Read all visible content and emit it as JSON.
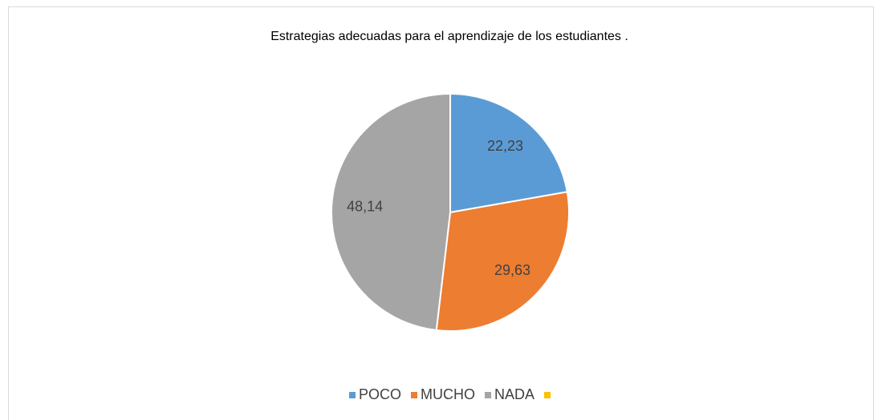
{
  "chart_data": {
    "type": "pie",
    "title": "Estrategias adecuadas para el aprendizaje de los estudiantes .",
    "categories": [
      "POCO",
      "MUCHO",
      "NADA",
      null
    ],
    "values": [
      22.23,
      29.63,
      48.14,
      null
    ],
    "value_labels": [
      "22,23",
      "29,63",
      "48,14",
      null
    ],
    "colors": [
      "#5b9bd5",
      "#ed7d31",
      "#a5a5a5",
      "#ffc000"
    ],
    "legend": "bottom"
  }
}
